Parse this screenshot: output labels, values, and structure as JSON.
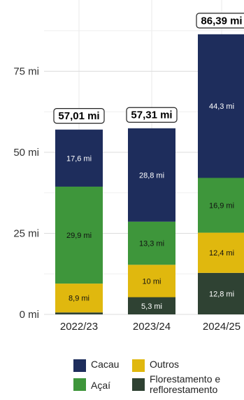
{
  "chart_data": {
    "type": "bar",
    "stacked": true,
    "categories": [
      "2022/23",
      "2023/24",
      "2024/25"
    ],
    "ylim": [
      0,
      95
    ],
    "yticks": [
      0,
      25,
      50,
      75
    ],
    "ytick_labels": [
      "0 mi",
      "25 mi",
      "50 mi",
      "75 mi"
    ],
    "grid": true,
    "legend_position": "bottom",
    "series": [
      {
        "name": "Florestamento e\nreflorestamento",
        "color": "#2f4233",
        "label_color": "#ffffff",
        "values": [
          0.6,
          5.3,
          12.8
        ],
        "labels": [
          "",
          "5,3 mi",
          "12,8 mi"
        ]
      },
      {
        "name": "Outros",
        "color": "#e0b80e",
        "label_color": "#111111",
        "values": [
          8.9,
          10.0,
          12.4
        ],
        "labels": [
          "8,9 mi",
          "10 mi",
          "12,4 mi"
        ]
      },
      {
        "name": "Açaí",
        "color": "#3e963b",
        "label_color": "#111111",
        "values": [
          29.9,
          13.3,
          16.9
        ],
        "labels": [
          "29,9 mi",
          "13,3 mi",
          "16,9 mi"
        ]
      },
      {
        "name": "Cacau",
        "color": "#1e2d5c",
        "label_color": "#ffffff",
        "values": [
          17.6,
          28.8,
          44.3
        ],
        "labels": [
          "17,6 mi",
          "28,8 mi",
          "44,3 mi"
        ]
      }
    ],
    "totals": [
      57.01,
      57.31,
      86.39
    ],
    "total_labels": [
      "57,01 mi",
      "57,31 mi",
      "86,39 mi"
    ]
  },
  "legend": {
    "items": [
      {
        "label": "Cacau",
        "color": "#1e2d5c"
      },
      {
        "label": "Outros",
        "color": "#e0b80e"
      },
      {
        "label": "Açaí",
        "color": "#3e963b"
      },
      {
        "label": "Florestamento e\nreflorestamento",
        "color": "#2f4233"
      }
    ]
  }
}
